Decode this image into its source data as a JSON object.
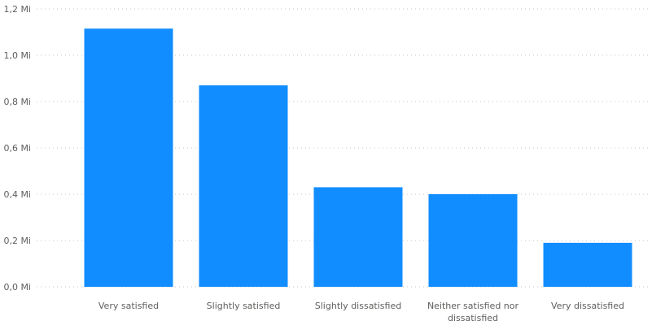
{
  "chart_data": {
    "type": "bar",
    "categories": [
      [
        "Very satisfied"
      ],
      [
        "Slightly satisfied"
      ],
      [
        "Slightly dissatisfied"
      ],
      [
        "Neither satisfied nor",
        "dissatisfied"
      ],
      [
        "Very dissatisfied"
      ]
    ],
    "values": [
      1.115,
      0.87,
      0.43,
      0.4,
      0.19
    ],
    "ylim": [
      0,
      1.2
    ],
    "yticks": [
      0,
      0.2,
      0.4,
      0.6,
      0.8,
      1.0,
      1.2
    ],
    "ytick_labels": [
      "0,0 Mi",
      "0,2 Mi",
      "0,4 Mi",
      "0,6 Mi",
      "0,8 Mi",
      "1,0 Mi",
      "1,2 Mi"
    ],
    "grid": true,
    "bar_color": "#118dff",
    "title": "",
    "xlabel": "",
    "ylabel": ""
  }
}
